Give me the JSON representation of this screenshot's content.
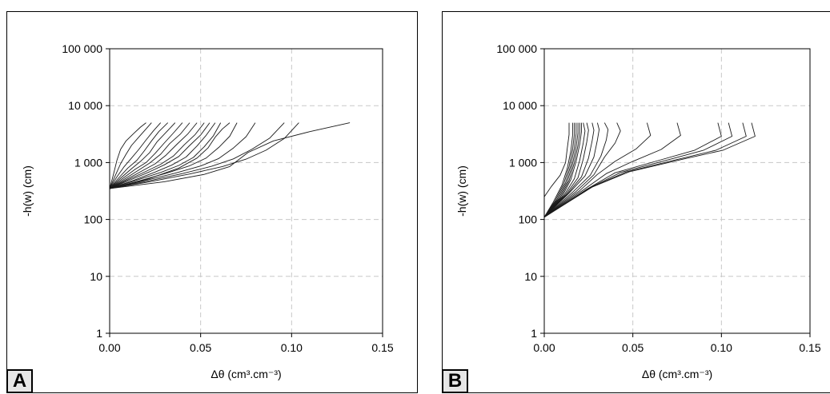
{
  "chart_data": [
    {
      "type": "line",
      "panel_label": "A",
      "xlabel": "Δθ (cm³.cm⁻³)",
      "ylabel": "-h(w) (cm)",
      "xlim": [
        0,
        0.15
      ],
      "ylim": [
        1,
        100000
      ],
      "y_scale": "log",
      "grid": true,
      "x_ticks": [
        "0.00",
        "0.05",
        "0.10",
        "0.15"
      ],
      "y_ticks": [
        "1",
        "10",
        "100",
        "1 000",
        "10 000",
        "100 000"
      ],
      "series": [
        {
          "x": [
            0,
            0.002,
            0.004,
            0.006,
            0.009,
            0.013,
            0.017,
            0.02
          ],
          "y": [
            350,
            600,
            1100,
            1700,
            2400,
            3200,
            4200,
            5000
          ]
        },
        {
          "x": [
            0,
            0.003,
            0.006,
            0.009,
            0.012,
            0.016,
            0.02,
            0.023
          ],
          "y": [
            350,
            580,
            950,
            1400,
            2000,
            2800,
            3900,
            5000
          ]
        },
        {
          "x": [
            0,
            0.004,
            0.008,
            0.012,
            0.016,
            0.02,
            0.024,
            0.028
          ],
          "y": [
            350,
            560,
            850,
            1200,
            1700,
            2500,
            3600,
            5000
          ]
        },
        {
          "x": [
            0,
            0.005,
            0.01,
            0.015,
            0.019,
            0.023,
            0.027,
            0.032
          ],
          "y": [
            350,
            540,
            800,
            1100,
            1600,
            2400,
            3500,
            5000
          ]
        },
        {
          "x": [
            0,
            0.006,
            0.012,
            0.017,
            0.022,
            0.026,
            0.031,
            0.036
          ],
          "y": [
            350,
            530,
            780,
            1050,
            1500,
            2300,
            3400,
            5000
          ]
        },
        {
          "x": [
            0,
            0.007,
            0.014,
            0.02,
            0.025,
            0.03,
            0.035,
            0.04
          ],
          "y": [
            350,
            520,
            760,
            1000,
            1450,
            2200,
            3300,
            5000
          ]
        },
        {
          "x": [
            0,
            0.008,
            0.016,
            0.022,
            0.028,
            0.033,
            0.039,
            0.044
          ],
          "y": [
            350,
            510,
            740,
            980,
            1400,
            2150,
            3200,
            5000
          ]
        },
        {
          "x": [
            0,
            0.009,
            0.018,
            0.025,
            0.031,
            0.037,
            0.043,
            0.048
          ],
          "y": [
            350,
            500,
            720,
            950,
            1350,
            2100,
            3200,
            5000
          ]
        },
        {
          "x": [
            0,
            0.01,
            0.02,
            0.028,
            0.035,
            0.041,
            0.047,
            0.052
          ],
          "y": [
            350,
            495,
            700,
            930,
            1300,
            2050,
            3100,
            5000
          ]
        },
        {
          "x": [
            0,
            0.011,
            0.022,
            0.03,
            0.038,
            0.044,
            0.05,
            0.055
          ],
          "y": [
            350,
            490,
            690,
            910,
            1280,
            2000,
            3050,
            5000
          ]
        },
        {
          "x": [
            0,
            0.013,
            0.025,
            0.034,
            0.042,
            0.048,
            0.053,
            0.058
          ],
          "y": [
            350,
            485,
            680,
            900,
            1250,
            1950,
            3000,
            5000
          ]
        },
        {
          "x": [
            0,
            0.014,
            0.028,
            0.038,
            0.046,
            0.052,
            0.057,
            0.061
          ],
          "y": [
            350,
            480,
            670,
            890,
            1230,
            1900,
            2950,
            5000
          ]
        },
        {
          "x": [
            0,
            0.016,
            0.032,
            0.044,
            0.053,
            0.06,
            0.066,
            0.07
          ],
          "y": [
            350,
            475,
            660,
            880,
            1200,
            1850,
            2900,
            5000
          ]
        },
        {
          "x": [
            0,
            0.018,
            0.036,
            0.05,
            0.06,
            0.068,
            0.075,
            0.08
          ],
          "y": [
            350,
            470,
            650,
            870,
            1180,
            1800,
            2850,
            5000
          ]
        },
        {
          "x": [
            0,
            0.02,
            0.04,
            0.056,
            0.068,
            0.078,
            0.088,
            0.096
          ],
          "y": [
            350,
            465,
            640,
            860,
            1160,
            1700,
            2700,
            5000
          ]
        },
        {
          "x": [
            0,
            0.022,
            0.044,
            0.062,
            0.075,
            0.086,
            0.096,
            0.104
          ],
          "y": [
            350,
            460,
            630,
            850,
            1150,
            1650,
            2650,
            5000
          ]
        },
        {
          "x": [
            0,
            0.03,
            0.052,
            0.066,
            0.076,
            0.09,
            0.11,
            0.132
          ],
          "y": [
            350,
            460,
            620,
            850,
            1500,
            2400,
            3500,
            5000
          ]
        },
        {
          "x": [
            0,
            0.02,
            0.038,
            0.048,
            0.054,
            0.058,
            0.062,
            0.066
          ],
          "y": [
            350,
            500,
            800,
            1200,
            1800,
            2800,
            3900,
            5000
          ]
        }
      ]
    },
    {
      "type": "line",
      "panel_label": "B",
      "xlabel": "Δθ (cm³.cm⁻³)",
      "ylabel": "-h(w) (cm)",
      "xlim": [
        0,
        0.15
      ],
      "ylim": [
        1,
        100000
      ],
      "y_scale": "log",
      "grid": true,
      "x_ticks": [
        "0.00",
        "0.05",
        "0.10",
        "0.15"
      ],
      "y_ticks": [
        "1",
        "10",
        "100",
        "1 000",
        "10 000",
        "100 000"
      ],
      "series": [
        {
          "x": [
            0,
            0.005,
            0.01,
            0.013,
            0.015,
            0.016,
            0.016
          ],
          "y": [
            110,
            200,
            400,
            800,
            1600,
            3000,
            5000
          ]
        },
        {
          "x": [
            0,
            0.006,
            0.011,
            0.014,
            0.016,
            0.017,
            0.017
          ],
          "y": [
            110,
            210,
            420,
            850,
            1700,
            3100,
            5000
          ]
        },
        {
          "x": [
            0,
            0.007,
            0.012,
            0.015,
            0.017,
            0.018,
            0.018
          ],
          "y": [
            110,
            220,
            440,
            900,
            1800,
            3200,
            5000
          ]
        },
        {
          "x": [
            0,
            0.008,
            0.013,
            0.016,
            0.018,
            0.019,
            0.019
          ],
          "y": [
            110,
            230,
            460,
            950,
            1900,
            3300,
            5000
          ]
        },
        {
          "x": [
            0,
            0.009,
            0.014,
            0.017,
            0.019,
            0.02,
            0.02
          ],
          "y": [
            110,
            240,
            480,
            1000,
            2000,
            3400,
            5000
          ]
        },
        {
          "x": [
            0,
            0.01,
            0.015,
            0.018,
            0.02,
            0.021,
            0.021
          ],
          "y": [
            110,
            250,
            500,
            1050,
            2100,
            3500,
            5000
          ]
        },
        {
          "x": [
            0,
            0.011,
            0.017,
            0.02,
            0.022,
            0.023,
            0.022
          ],
          "y": [
            110,
            260,
            520,
            1100,
            2200,
            3600,
            5000
          ]
        },
        {
          "x": [
            0,
            0.012,
            0.019,
            0.022,
            0.024,
            0.025,
            0.024
          ],
          "y": [
            110,
            270,
            540,
            1150,
            2300,
            3700,
            5000
          ]
        },
        {
          "x": [
            0,
            0.013,
            0.021,
            0.025,
            0.027,
            0.028,
            0.027
          ],
          "y": [
            110,
            280,
            560,
            1200,
            2400,
            3700,
            5000
          ]
        },
        {
          "x": [
            0,
            0.014,
            0.023,
            0.028,
            0.03,
            0.031,
            0.03
          ],
          "y": [
            110,
            290,
            580,
            1250,
            2500,
            3800,
            5000
          ]
        },
        {
          "x": [
            0,
            0.016,
            0.026,
            0.032,
            0.035,
            0.036,
            0.034
          ],
          "y": [
            110,
            300,
            600,
            1300,
            2500,
            3800,
            5000
          ]
        },
        {
          "x": [
            0,
            0.018,
            0.028,
            0.034,
            0.04,
            0.043,
            0.041
          ],
          "y": [
            110,
            310,
            610,
            1250,
            2200,
            3600,
            5000
          ]
        },
        {
          "x": [
            0,
            0.02,
            0.03,
            0.04,
            0.052,
            0.06,
            0.058
          ],
          "y": [
            110,
            320,
            620,
            1050,
            1750,
            3000,
            5000
          ]
        },
        {
          "x": [
            0,
            0.022,
            0.035,
            0.05,
            0.066,
            0.077,
            0.075
          ],
          "y": [
            110,
            330,
            640,
            1050,
            1700,
            3000,
            5000
          ]
        },
        {
          "x": [
            0,
            0.024,
            0.04,
            0.065,
            0.085,
            0.1,
            0.098
          ],
          "y": [
            110,
            340,
            660,
            1100,
            1650,
            2900,
            5000
          ]
        },
        {
          "x": [
            0,
            0.025,
            0.043,
            0.07,
            0.09,
            0.106,
            0.104
          ],
          "y": [
            110,
            350,
            670,
            1120,
            1650,
            2900,
            5000
          ]
        },
        {
          "x": [
            0,
            0.026,
            0.046,
            0.075,
            0.097,
            0.114,
            0.112
          ],
          "y": [
            110,
            360,
            680,
            1130,
            1650,
            2900,
            5000
          ]
        },
        {
          "x": [
            0,
            0.027,
            0.048,
            0.078,
            0.101,
            0.119,
            0.117
          ],
          "y": [
            110,
            370,
            690,
            1140,
            1650,
            2900,
            5000
          ]
        },
        {
          "x": [
            0,
            0.004,
            0.009,
            0.012,
            0.013,
            0.014,
            0.014
          ],
          "y": [
            250,
            380,
            600,
            1000,
            1800,
            3100,
            5000
          ]
        }
      ]
    }
  ]
}
